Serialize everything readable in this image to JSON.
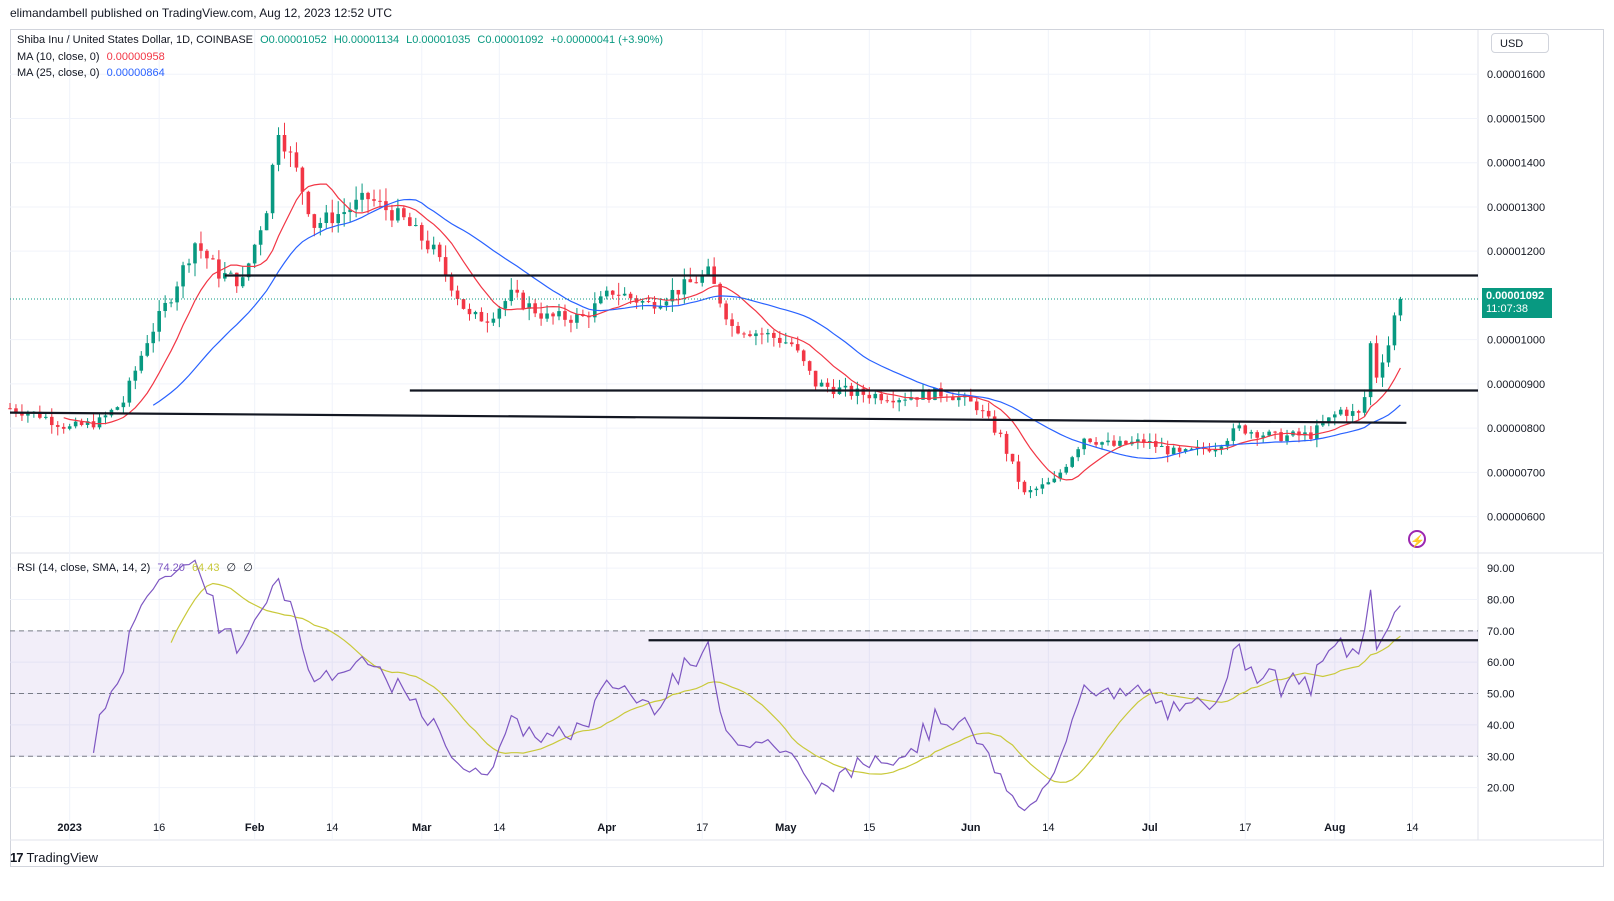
{
  "header": {
    "publisher_text": "elimandambell published on TradingView.com, Aug 12, 2023 12:52 UTC"
  },
  "legend": {
    "symbol": "Shiba Inu / United States Dollar, 1D, COINBASE",
    "o": "O0.00001052",
    "h": "H0.00001134",
    "l": "L0.00001035",
    "c": "C0.00001092",
    "change": "+0.00000041 (+3.90%)",
    "ma10_label": "MA (10, close, 0)",
    "ma10_value": "0.00000958",
    "ma25_label": "MA (25, close, 0)",
    "ma25_value": "0.00000864",
    "rsi_label": "RSI (14, close, SMA, 14, 2)",
    "rsi_value": "74.20",
    "rsi_sma_value": "64.43",
    "rsi_extra1": "∅",
    "rsi_extra2": "∅"
  },
  "currency_button": "USD",
  "last_price": {
    "value": "0.00001092",
    "countdown": "11:07:38"
  },
  "colors": {
    "up": "#089981",
    "down": "#f23645",
    "ma10": "#f23645",
    "ma25": "#2962ff",
    "rsi": "#7e57c2",
    "rsi_sma": "#c9c93a"
  },
  "footer": {
    "brand": "TradingView"
  },
  "chart_data": [
    {
      "type": "candlestick",
      "title": "Shiba Inu / United States Dollar, 1D, COINBASE",
      "x_ticks": [
        "2023",
        "16",
        "Feb",
        "14",
        "Mar",
        "14",
        "Apr",
        "17",
        "May",
        "15",
        "Jun",
        "14",
        "Jul",
        "17",
        "Aug",
        "14"
      ],
      "x_range": [
        "2022-12-22",
        "2023-08-25"
      ],
      "y_ticks": [
        "0.00001600",
        "0.00001500",
        "0.00001400",
        "0.00001300",
        "0.00001200",
        "0.00001000",
        "0.00000900",
        "0.00000800",
        "0.00000700",
        "0.00000600"
      ],
      "ylim": [
        5.2e-06,
        1.7e-05
      ],
      "close_keypoints": [
        [
          "2022-12-22",
          8.45e-06
        ],
        [
          "2022-12-27",
          8.3e-06
        ],
        [
          "2023-01-01",
          8e-06
        ],
        [
          "2023-01-06",
          8.15e-06
        ],
        [
          "2023-01-10",
          8.6e-06
        ],
        [
          "2023-01-14",
          1e-05
        ],
        [
          "2023-01-18",
          1.1e-05
        ],
        [
          "2023-01-22",
          1.22e-05
        ],
        [
          "2023-01-26",
          1.15e-05
        ],
        [
          "2023-01-30",
          1.13e-05
        ],
        [
          "2023-02-03",
          1.3e-05
        ],
        [
          "2023-02-05",
          1.48e-05
        ],
        [
          "2023-02-08",
          1.38e-05
        ],
        [
          "2023-02-11",
          1.26e-05
        ],
        [
          "2023-02-16",
          1.29e-05
        ],
        [
          "2023-02-20",
          1.32e-05
        ],
        [
          "2023-02-26",
          1.27e-05
        ],
        [
          "2023-03-03",
          1.2e-05
        ],
        [
          "2023-03-09",
          1.05e-05
        ],
        [
          "2023-03-12",
          1.05e-05
        ],
        [
          "2023-03-16",
          1.1e-05
        ],
        [
          "2023-03-22",
          1.05e-05
        ],
        [
          "2023-03-28",
          1.05e-05
        ],
        [
          "2023-04-02",
          1.11e-05
        ],
        [
          "2023-04-08",
          1.08e-05
        ],
        [
          "2023-04-14",
          1.12e-05
        ],
        [
          "2023-04-18",
          1.15e-05
        ],
        [
          "2023-04-22",
          1.03e-05
        ],
        [
          "2023-04-28",
          1.01e-05
        ],
        [
          "2023-05-02",
          9.9e-06
        ],
        [
          "2023-05-06",
          9e-06
        ],
        [
          "2023-05-12",
          8.8e-06
        ],
        [
          "2023-05-20",
          8.7e-06
        ],
        [
          "2023-05-28",
          8.8e-06
        ],
        [
          "2023-06-02",
          8.5e-06
        ],
        [
          "2023-06-06",
          7.8e-06
        ],
        [
          "2023-06-10",
          6.5e-06
        ],
        [
          "2023-06-15",
          6.8e-06
        ],
        [
          "2023-06-20",
          7.8e-06
        ],
        [
          "2023-06-25",
          7.6e-06
        ],
        [
          "2023-06-30",
          7.7e-06
        ],
        [
          "2023-07-06",
          7.4e-06
        ],
        [
          "2023-07-12",
          7.6e-06
        ],
        [
          "2023-07-16",
          8e-06
        ],
        [
          "2023-07-22",
          7.8e-06
        ],
        [
          "2023-07-28",
          7.85e-06
        ],
        [
          "2023-08-02",
          8.4e-06
        ],
        [
          "2023-08-05",
          8.3e-06
        ],
        [
          "2023-08-06",
          8.7e-06
        ],
        [
          "2023-08-07",
          9.9e-06
        ],
        [
          "2023-08-08",
          9.2e-06
        ],
        [
          "2023-08-09",
          9.6e-06
        ],
        [
          "2023-08-10",
          9.9e-06
        ],
        [
          "2023-08-11",
          1.051e-05
        ],
        [
          "2023-08-12",
          1.092e-05
        ]
      ],
      "horizontal_lines": [
        {
          "from": "2023-01-27",
          "to": "2023-08-25",
          "y": 1.145e-05
        },
        {
          "from": "2023-02-27",
          "to": "2023-08-25",
          "y": 8.85e-06
        },
        {
          "from": "2022-12-22",
          "to": "2023-08-13",
          "y_from": 8.35e-06,
          "y_to": 8.12e-06
        }
      ],
      "series": [
        {
          "name": "MA (10, close, 0)",
          "window": 10
        },
        {
          "name": "MA (25, close, 0)",
          "window": 25
        }
      ]
    },
    {
      "type": "line",
      "title": "RSI (14, close, SMA, 14, 2)",
      "y_ticks": [
        "90.00",
        "80.00",
        "70.00",
        "60.00",
        "50.00",
        "40.00",
        "30.00",
        "20.00"
      ],
      "ylim": [
        13.5,
        94.5
      ],
      "band": [
        30,
        70
      ],
      "midline": 50,
      "horizontal_lines": [
        {
          "from": "2023-04-08",
          "to": "2023-08-25",
          "y": 67
        }
      ],
      "series": [
        {
          "name": "RSI (14, close, SMA, 14, 2)",
          "key": "rsi"
        },
        {
          "name": "SMA",
          "key": "sma"
        }
      ]
    }
  ]
}
